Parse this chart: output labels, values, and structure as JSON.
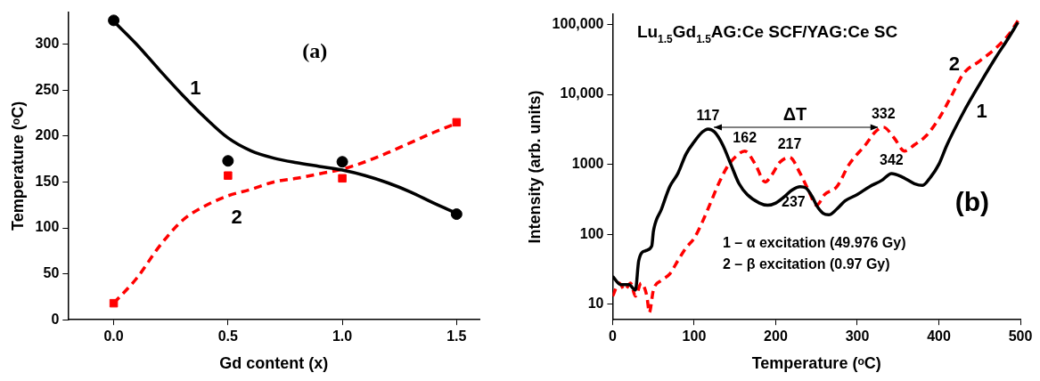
{
  "chart_data": [
    {
      "type": "scatter",
      "xlabel": "Gd content (x)",
      "ylabel": "Temperature (ᵒC)",
      "xlim": [
        -0.2,
        1.6
      ],
      "xticks": [
        {
          "value": 0,
          "label": "0.0"
        },
        {
          "value": 0.5,
          "label": "0.5"
        },
        {
          "value": 1,
          "label": "1.0"
        },
        {
          "value": 1.5,
          "label": "1.5"
        }
      ],
      "ylim": [
        0,
        335
      ],
      "yticks": [
        0,
        50,
        100,
        150,
        200,
        250,
        300
      ],
      "series": [
        {
          "type": "line",
          "color": "#000000",
          "line_style": "solid",
          "marker": "none",
          "x": [
            0,
            0.1,
            0.2,
            0.3,
            0.4,
            0.5,
            0.6,
            0.7,
            0.8,
            0.9,
            1.0,
            1.1,
            1.2,
            1.3,
            1.4,
            1.5
          ],
          "values": [
            325,
            300,
            272,
            245,
            220,
            198,
            184,
            176,
            171,
            167,
            163,
            157,
            149,
            139,
            127,
            116
          ]
        },
        {
          "type": "line",
          "color": "#ff0000",
          "line_style": "dashed",
          "marker": "none",
          "x": [
            0,
            0.1,
            0.2,
            0.3,
            0.4,
            0.5,
            0.6,
            0.7,
            0.8,
            0.9,
            1.0,
            1.1,
            1.2,
            1.3,
            1.4,
            1.5
          ],
          "values": [
            18,
            45,
            80,
            108,
            124,
            135,
            142,
            150,
            154,
            159,
            164,
            172,
            182,
            193,
            204,
            214
          ]
        },
        {
          "color": "#000000",
          "marker": "circle",
          "x": [
            0,
            0.5,
            1,
            1.5
          ],
          "values": [
            326,
            173,
            172,
            115
          ]
        },
        {
          "color": "#ff0000",
          "marker": "square",
          "x": [
            0,
            0.5,
            1,
            1.5
          ],
          "values": [
            18,
            157,
            154,
            215
          ]
        }
      ],
      "annotations": [
        "1",
        "2",
        "(a)"
      ]
    },
    {
      "type": "line",
      "title": "Lu$_{1.5}$Gd$_{1.5}$AG:Ce SCF/YAG:Ce SC",
      "xlabel": "Temperature (ᵒC)",
      "ylabel": "Intensity (arb. units)",
      "log": "y",
      "xlim": [
        0,
        500
      ],
      "xticks": [
        0,
        100,
        200,
        300,
        400,
        500
      ],
      "ylim": [
        6,
        140000
      ],
      "yticks": [
        10,
        100,
        1000,
        {
          "value": 10000,
          "label": "10,000"
        },
        {
          "value": 100000,
          "label": "100,000"
        }
      ],
      "series": [
        {
          "color": "#000000",
          "line_style": "solid",
          "marker": "none",
          "x": [
            0,
            10,
            20,
            28,
            32,
            40,
            48,
            50,
            60,
            70,
            80,
            90,
            100,
            110,
            117,
            125,
            135,
            145,
            155,
            165,
            180,
            190,
            200,
            210,
            220,
            230,
            237,
            245,
            250,
            258,
            265,
            275,
            285,
            300,
            315,
            330,
            342,
            355,
            370,
            380,
            390,
            400,
            410,
            430,
            450,
            470,
            485,
            497
          ],
          "values": [
            25,
            19,
            19,
            16,
            42,
            58,
            68,
            110,
            230,
            480,
            740,
            1400,
            2100,
            2900,
            3200,
            2900,
            1900,
            1000,
            530,
            370,
            280,
            260,
            280,
            340,
            430,
            480,
            460,
            340,
            260,
            200,
            190,
            230,
            300,
            370,
            480,
            590,
            740,
            660,
            530,
            500,
            660,
            1000,
            1900,
            5500,
            14000,
            34000,
            63000,
            107000
          ]
        },
        {
          "color": "#ff0000",
          "line_style": "dashed",
          "marker": "none",
          "x": [
            0,
            8,
            15,
            22,
            28,
            35,
            42,
            45,
            50,
            60,
            70,
            80,
            90,
            100,
            110,
            120,
            130,
            140,
            150,
            162,
            175,
            187,
            195,
            205,
            217,
            230,
            240,
            250,
            260,
            275,
            290,
            310,
            322,
            332,
            345,
            358,
            370,
            385,
            400,
            415,
            430,
            450,
            470,
            485,
            498
          ],
          "values": [
            13,
            20,
            16,
            20,
            13,
            20,
            13,
            7.6,
            16,
            22,
            27,
            42,
            64,
            88,
            150,
            280,
            530,
            900,
            1260,
            1550,
            1000,
            560,
            700,
            1070,
            1260,
            740,
            430,
            260,
            370,
            480,
            1000,
            1900,
            2900,
            3400,
            2400,
            1550,
            1900,
            2600,
            4500,
            9300,
            19700,
            30000,
            46000,
            70000,
            118000
          ]
        }
      ],
      "annotations": [
        {
          "text": "117",
          "x": 117,
          "y": 3200
        },
        {
          "text": "162",
          "x": 162,
          "y": 1550
        },
        {
          "text": "217",
          "x": 217,
          "y": 1260
        },
        {
          "text": "237",
          "x": 237,
          "y": 460
        },
        {
          "text": "332",
          "x": 332,
          "y": 3400
        },
        {
          "text": "342",
          "x": 342,
          "y": 740
        },
        "ΔT",
        "1",
        "2",
        "(b)",
        "1 – α excitation (49.976 Gy)",
        "2 – β excitation (0.97 Gy)"
      ]
    }
  ]
}
